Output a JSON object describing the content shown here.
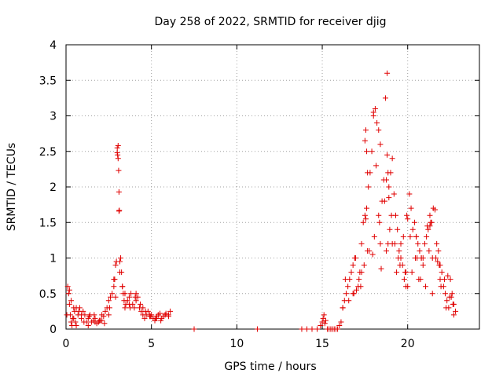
{
  "chart_data": {
    "type": "scatter",
    "title": "Day 258 of 2022, SRMTID for receiver djig",
    "xlabel": "GPS time / hours",
    "ylabel": "SRMTID / TECUs",
    "xlim": [
      0,
      24.2
    ],
    "ylim": [
      0,
      4
    ],
    "x_ticks": [
      0,
      5,
      10,
      15,
      20
    ],
    "x_tick_labels": [
      "0",
      "5",
      "10",
      "15",
      "20"
    ],
    "y_ticks": [
      0,
      0.5,
      1,
      1.5,
      2,
      2.5,
      3,
      3.5,
      4
    ],
    "y_tick_labels": [
      "0",
      "0.5",
      "1",
      "1.5",
      "2",
      "2.5",
      "3",
      "3.5",
      "4"
    ],
    "grid": true,
    "marker": "+",
    "marker_color": "#e00000",
    "series": [
      {
        "name": "djig",
        "x": [
          0.05,
          0.1,
          0.15,
          0.2,
          0.25,
          0.3,
          0.35,
          0.4,
          0.45,
          0.5,
          0.55,
          0.6,
          0.7,
          0.8,
          0.9,
          1.0,
          1.1,
          1.2,
          1.3,
          1.4,
          1.5,
          1.6,
          1.7,
          1.8,
          1.9,
          2.0,
          2.1,
          2.2,
          2.3,
          2.4,
          2.5,
          2.6,
          2.7,
          2.8,
          2.85,
          2.9,
          2.95,
          3.0,
          3.0,
          3.02,
          3.05,
          3.05,
          3.08,
          3.1,
          3.1,
          3.12,
          3.15,
          3.2,
          3.25,
          3.3,
          3.35,
          3.4,
          3.45,
          3.5,
          3.6,
          3.7,
          3.8,
          3.9,
          4.0,
          4.1,
          4.2,
          4.3,
          4.4,
          4.5,
          4.6,
          4.7,
          4.8,
          4.9,
          5.0,
          5.1,
          5.2,
          5.3,
          5.4,
          5.5,
          5.6,
          5.8,
          6.0,
          6.1,
          0.3,
          0.6,
          0.9,
          1.3,
          1.7,
          2.1,
          2.5,
          2.9,
          3.3,
          3.7,
          4.1,
          4.5,
          4.9,
          5.3,
          5.7,
          6.0,
          0.2,
          0.45,
          0.75,
          1.05,
          1.35,
          1.65,
          1.95,
          2.25,
          2.55,
          2.8,
          3.15,
          3.45,
          3.75,
          4.05,
          4.35,
          4.65,
          4.95,
          5.25,
          5.55,
          5.85,
          7.5,
          11.2,
          13.8,
          14.1,
          14.4,
          14.7,
          14.9,
          15.0,
          15.05,
          15.1,
          15.15,
          15.2,
          15.3,
          15.4,
          15.5,
          15.6,
          15.7,
          15.8,
          15.9,
          16.0,
          16.1,
          16.2,
          16.3,
          16.4,
          16.5,
          16.6,
          16.7,
          16.8,
          16.9,
          17.0,
          17.1,
          17.2,
          17.3,
          17.4,
          17.5,
          17.6,
          17.7,
          17.8,
          17.9,
          18.0,
          18.1,
          18.2,
          18.3,
          18.4,
          18.5,
          18.6,
          18.7,
          18.8,
          18.9,
          19.0,
          19.1,
          19.2,
          19.3,
          19.4,
          19.5,
          19.6,
          19.7,
          19.8,
          19.9,
          20.0,
          20.1,
          20.2,
          20.3,
          20.4,
          20.5,
          20.6,
          20.7,
          20.8,
          20.9,
          21.0,
          21.1,
          21.2,
          21.3,
          21.4,
          21.5,
          21.6,
          21.7,
          21.8,
          21.9,
          22.0,
          22.1,
          22.2,
          22.3,
          22.4,
          22.5,
          22.6,
          22.7,
          22.8,
          16.55,
          16.85,
          17.15,
          17.45,
          17.75,
          18.05,
          18.35,
          18.65,
          18.95,
          19.25,
          19.55,
          19.85,
          20.15,
          20.45,
          20.75,
          21.05,
          21.35,
          21.65,
          21.95,
          22.25,
          22.55,
          16.35,
          16.95,
          17.55,
          18.15,
          18.75,
          19.35,
          19.95,
          20.55,
          21.15,
          21.75,
          22.35,
          17.25,
          17.65,
          17.95,
          18.45,
          18.85,
          19.05,
          19.45,
          19.75,
          20.25,
          20.65,
          21.25,
          21.45,
          21.85,
          22.15,
          22.45,
          22.65,
          17.5,
          17.55,
          17.6,
          17.65,
          18.0,
          18.3,
          18.4,
          18.75,
          18.8,
          18.85,
          18.9,
          19.6,
          20.0,
          20.5,
          20.8,
          21.3,
          21.45,
          16.2,
          16.8,
          17.3,
          19.1,
          19.9,
          20.9,
          21.9,
          22.7
        ],
        "y": [
          0.2,
          0.6,
          0.5,
          0.35,
          0.2,
          0.1,
          0.05,
          0.15,
          0.3,
          0.25,
          0.1,
          0.05,
          0.2,
          0.3,
          0.15,
          0.25,
          0.2,
          0.1,
          0.05,
          0.2,
          0.1,
          0.12,
          0.15,
          0.08,
          0.1,
          0.12,
          0.2,
          0.18,
          0.25,
          0.3,
          0.4,
          0.45,
          0.5,
          0.6,
          0.7,
          0.9,
          0.95,
          2.55,
          2.48,
          2.45,
          2.58,
          2.4,
          2.23,
          1.93,
          1.66,
          1.67,
          0.95,
          1.0,
          0.8,
          0.6,
          0.5,
          0.4,
          0.3,
          0.35,
          0.4,
          0.45,
          0.5,
          0.35,
          0.3,
          0.4,
          0.45,
          0.3,
          0.25,
          0.2,
          0.15,
          0.2,
          0.25,
          0.18,
          0.2,
          0.15,
          0.12,
          0.18,
          0.2,
          0.22,
          0.15,
          0.2,
          0.18,
          0.25,
          0.4,
          0.3,
          0.2,
          0.15,
          0.1,
          0.12,
          0.2,
          0.45,
          0.6,
          0.35,
          0.5,
          0.3,
          0.2,
          0.15,
          0.18,
          0.2,
          0.55,
          0.15,
          0.25,
          0.1,
          0.18,
          0.2,
          0.12,
          0.08,
          0.3,
          0.7,
          0.8,
          0.5,
          0.3,
          0.45,
          0.35,
          0.25,
          0.18,
          0.15,
          0.12,
          0.22,
          0.0,
          0.0,
          0.0,
          0.0,
          0.0,
          0.0,
          0.05,
          0.1,
          0.15,
          0.2,
          0.08,
          0.12,
          0.0,
          0.0,
          0.0,
          0.0,
          0.0,
          0.0,
          0.0,
          0.05,
          0.1,
          0.3,
          0.4,
          0.5,
          0.6,
          0.7,
          0.8,
          0.9,
          1.0,
          0.55,
          0.6,
          0.8,
          1.2,
          1.5,
          1.6,
          1.7,
          2.0,
          2.2,
          2.5,
          3.05,
          3.1,
          2.9,
          1.6,
          1.2,
          1.8,
          2.1,
          3.25,
          3.6,
          2.0,
          2.2,
          2.4,
          1.9,
          1.6,
          1.4,
          1.1,
          1.0,
          0.9,
          0.7,
          0.8,
          0.6,
          1.9,
          1.7,
          1.4,
          1.5,
          1.3,
          1.2,
          1.1,
          1.0,
          0.9,
          1.2,
          1.3,
          1.4,
          1.6,
          1.5,
          1.7,
          1.68,
          1.2,
          1.1,
          0.9,
          0.8,
          0.6,
          0.5,
          0.4,
          0.3,
          0.7,
          0.5,
          0.35,
          0.25,
          0.4,
          0.5,
          0.7,
          0.9,
          1.1,
          1.3,
          1.5,
          1.8,
          1.4,
          1.2,
          0.9,
          0.8,
          1.3,
          1.0,
          0.7,
          0.6,
          1.5,
          1.0,
          0.6,
          0.3,
          0.45,
          0.7,
          1.0,
          1.55,
          2.3,
          1.1,
          0.8,
          1.6,
          1.0,
          1.45,
          0.95,
          0.75,
          0.6,
          1.1,
          1.05,
          0.85,
          1.2,
          1.6,
          1.0,
          1.3,
          0.8,
          0.7,
          1.1,
          0.5,
          0.9,
          0.7,
          0.45,
          0.35,
          2.65,
          2.8,
          2.5,
          2.2,
          3.0,
          2.8,
          2.6,
          2.1,
          2.45,
          2.2,
          1.85,
          1.2,
          1.55,
          1.3,
          1.0,
          1.45,
          1.0,
          0.3,
          0.5,
          0.8,
          1.2,
          0.6,
          1.0,
          0.7,
          0.2
        ]
      }
    ]
  }
}
